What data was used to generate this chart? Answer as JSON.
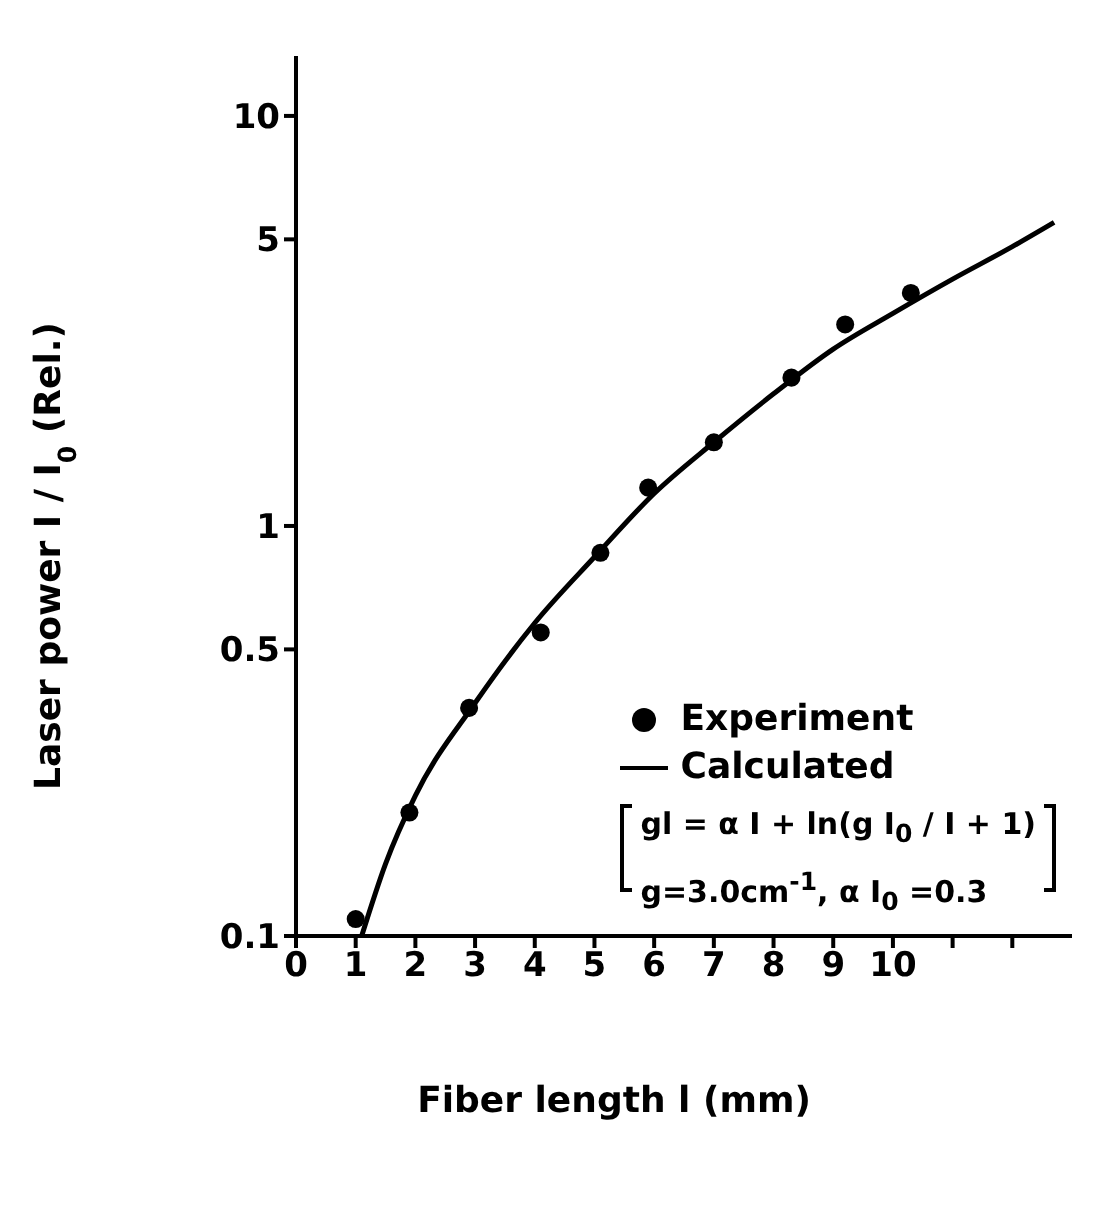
{
  "chart_data": {
    "type": "scatter",
    "xlabel": "Fiber length  l (mm)",
    "ylabel": "Laser power    I / I$_{0}$ (Rel.)",
    "xlim": [
      0,
      13
    ],
    "xticks": [
      0,
      1,
      2,
      3,
      4,
      5,
      6,
      7,
      8,
      9,
      10,
      {
        "value": 11,
        "label": null
      },
      {
        "value": 12,
        "label": null
      }
    ],
    "ylim": [
      0.1,
      14
    ],
    "yticks": [
      0.1,
      0.5,
      1,
      5,
      10
    ],
    "log": "y",
    "series": [
      {
        "name": "Experiment",
        "color": "#000000",
        "marker": "circle",
        "x": [
          1.0,
          1.9,
          2.9,
          4.1,
          5.1,
          5.9,
          7.0,
          8.3,
          9.2,
          10.3
        ],
        "values": [
          0.11,
          0.2,
          0.36,
          0.55,
          0.86,
          1.24,
          1.6,
          2.3,
          3.1,
          3.7
        ]
      },
      {
        "name": "Calculated",
        "type": "line",
        "color": "#000000",
        "marker": "none",
        "line_style": "solid",
        "x": [
          1.1,
          1.5,
          2,
          3,
          4,
          5,
          6,
          7,
          8,
          9,
          10,
          11,
          12,
          12.7
        ],
        "values": [
          0.1,
          0.15,
          0.22,
          0.37,
          0.58,
          0.84,
          1.2,
          1.6,
          2.1,
          2.7,
          3.3,
          4.0,
          4.8,
          5.5
        ]
      }
    ],
    "legend": "right",
    "annotations": [
      "gl = α I + ln(g I$_{0}$ / I  + 1)",
      "g=3.0cm$^{-1}$, α I$_{0}$ =0.3"
    ]
  }
}
